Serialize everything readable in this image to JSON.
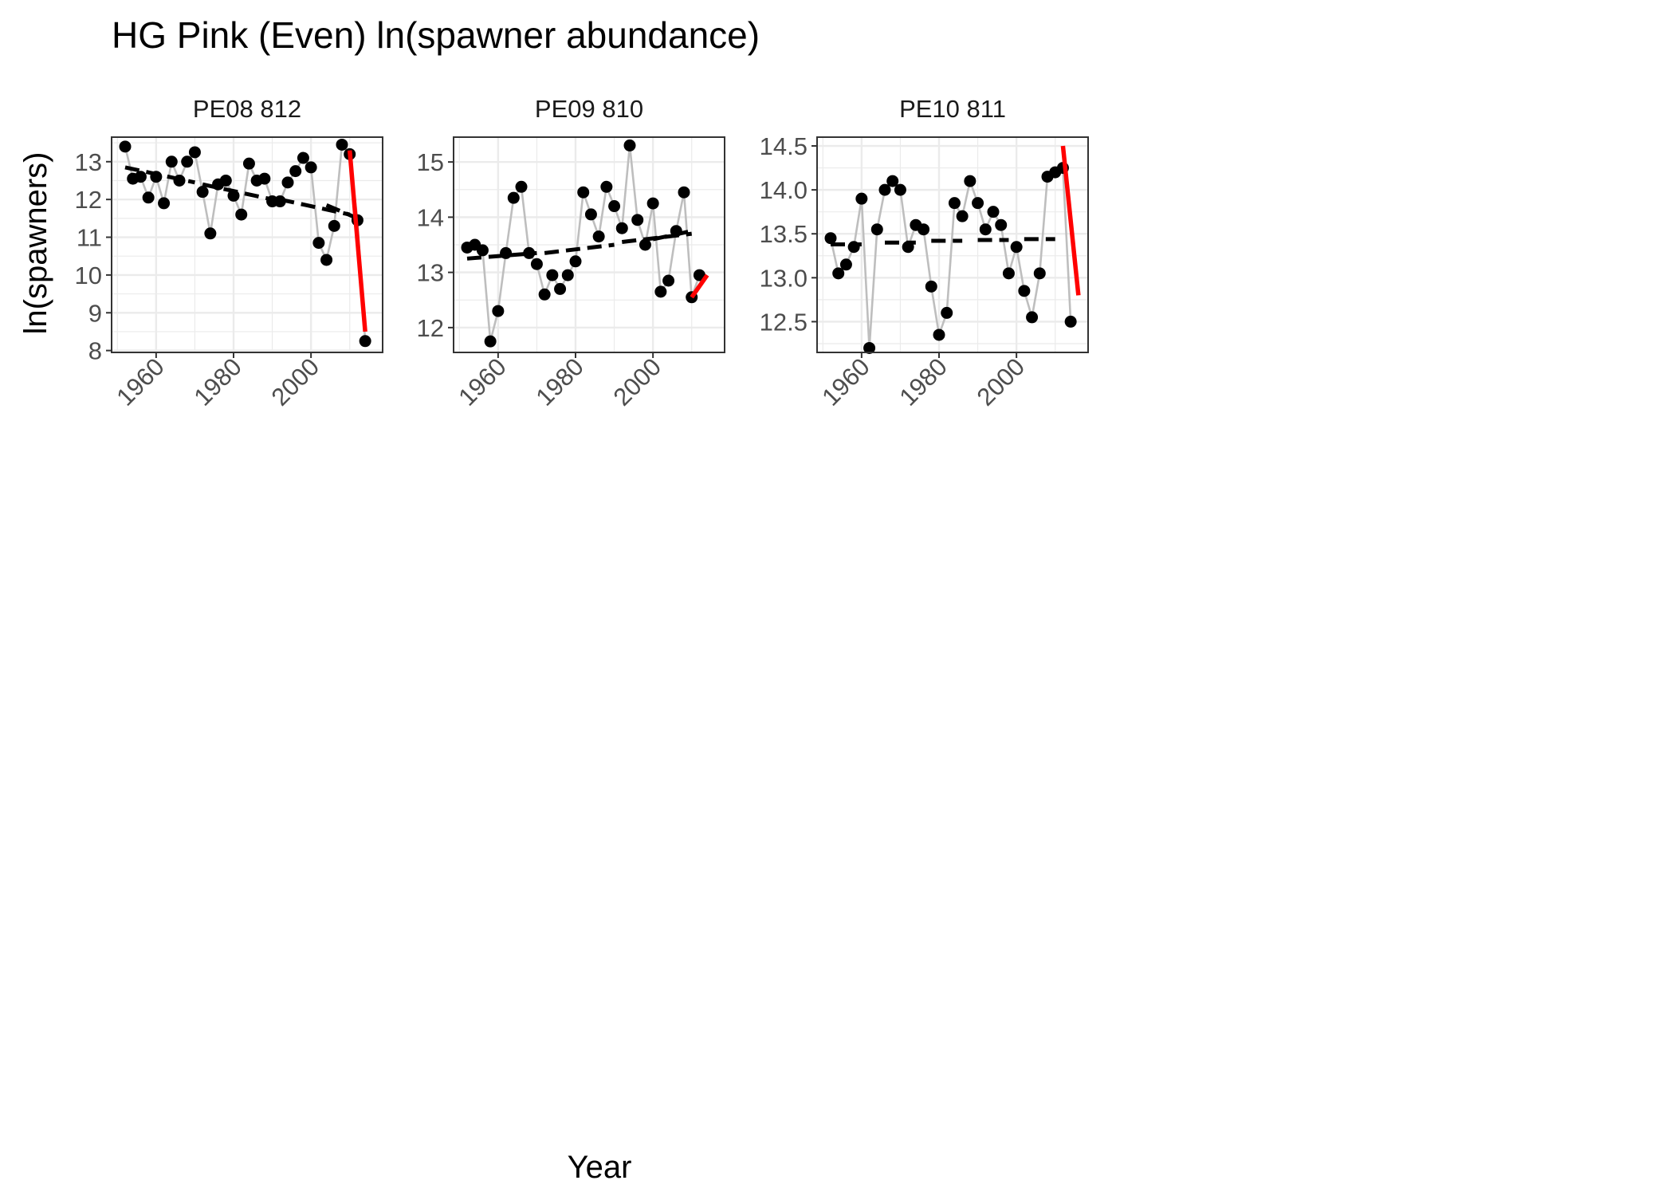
{
  "chart_data": {
    "type": "line",
    "title": "HG Pink (Even) ln(spawner abundance)",
    "xlabel": "Year",
    "ylabel": "ln(spawners)",
    "grid": true,
    "legend": "none",
    "colors": {
      "observed_line": "#bebebe",
      "points": "#000000",
      "trend_segments": "#000000",
      "recent_trend": "#ff0000",
      "grid": "#ebebeb",
      "panel_border": "#333333"
    },
    "panels": [
      {
        "name": "PE08 812",
        "xlim": [
          1948.5,
          2018.5
        ],
        "ylim": [
          7.95,
          13.65
        ],
        "xticks": [
          1960,
          1980,
          2000
        ],
        "yticks": [
          8,
          9,
          10,
          11,
          12,
          13
        ],
        "ytick_labels": [
          "8",
          "9",
          "10",
          "11",
          "12",
          "13"
        ],
        "x": [
          1952,
          1954,
          1956,
          1958,
          1960,
          1962,
          1964,
          1966,
          1968,
          1970,
          1972,
          1974,
          1976,
          1978,
          1980,
          1982,
          1984,
          1986,
          1988,
          1990,
          1992,
          1994,
          1996,
          1998,
          2000,
          2002,
          2004,
          2006,
          2008,
          2010,
          2012,
          2014,
          2016
        ],
        "y": [
          13.4,
          12.55,
          12.6,
          12.05,
          12.6,
          11.9,
          13.0,
          12.5,
          13.0,
          13.25,
          12.2,
          11.1,
          12.4,
          12.5,
          12.1,
          11.6,
          12.95,
          12.5,
          12.55,
          11.95,
          11.95,
          12.45,
          12.75,
          13.1,
          12.85,
          10.85,
          10.4,
          11.3,
          13.45,
          13.2,
          11.45,
          8.25,
          null
        ],
        "trend_segments": [
          {
            "x": [
              1952,
              1970
            ],
            "y": [
              12.85,
              12.45
            ]
          },
          {
            "x": [
              1972,
              1990
            ],
            "y": [
              12.4,
              12.0
            ]
          },
          {
            "x": [
              1992,
              2010
            ],
            "y": [
              12.0,
              11.6
            ]
          },
          {
            "x": [
              2004,
              2012
            ],
            "y": [
              11.85,
              11.5
            ]
          }
        ],
        "recent_trend": {
          "x": [
            2010,
            2014
          ],
          "y": [
            13.3,
            8.5
          ]
        }
      },
      {
        "name": "PE09 810",
        "xlim": [
          1948.5,
          2018.5
        ],
        "ylim": [
          11.55,
          15.45
        ],
        "xticks": [
          1960,
          1980,
          2000
        ],
        "yticks": [
          12,
          13,
          14,
          15
        ],
        "ytick_labels": [
          "12",
          "13",
          "14",
          "15"
        ],
        "x": [
          1952,
          1954,
          1956,
          1958,
          1960,
          1962,
          1964,
          1966,
          1968,
          1970,
          1972,
          1974,
          1976,
          1978,
          1980,
          1982,
          1984,
          1986,
          1988,
          1990,
          1992,
          1994,
          1996,
          1998,
          2000,
          2002,
          2004,
          2006,
          2008,
          2010,
          2012,
          2014
        ],
        "y": [
          13.45,
          13.5,
          13.4,
          11.75,
          12.3,
          13.35,
          14.35,
          14.55,
          13.35,
          13.15,
          12.6,
          12.95,
          12.7,
          12.95,
          13.2,
          14.45,
          14.05,
          13.65,
          14.55,
          14.2,
          13.8,
          15.3,
          13.95,
          13.5,
          14.25,
          12.65,
          12.85,
          13.75,
          14.45,
          12.55,
          12.95,
          null
        ],
        "trend_segments": [
          {
            "x": [
              1952,
              1970
            ],
            "y": [
              13.25,
              13.35
            ]
          },
          {
            "x": [
              1972,
              1990
            ],
            "y": [
              13.35,
              13.5
            ]
          },
          {
            "x": [
              1992,
              2010
            ],
            "y": [
              13.55,
              13.7
            ]
          },
          {
            "x": [
              2000,
              2010
            ],
            "y": [
              13.6,
              13.75
            ]
          }
        ],
        "recent_trend": {
          "x": [
            2010,
            2014
          ],
          "y": [
            12.55,
            12.95
          ]
        }
      },
      {
        "name": "PE10 811",
        "xlim": [
          1948.5,
          2018.5
        ],
        "ylim": [
          12.15,
          14.6
        ],
        "xticks": [
          1960,
          1980,
          2000
        ],
        "yticks": [
          12.5,
          13.0,
          13.5,
          14.0,
          14.5
        ],
        "ytick_labels": [
          "12.5",
          "13.0",
          "13.5",
          "14.0",
          "14.5"
        ],
        "x": [
          1952,
          1954,
          1956,
          1958,
          1960,
          1962,
          1964,
          1966,
          1968,
          1970,
          1972,
          1974,
          1976,
          1978,
          1980,
          1982,
          1984,
          1986,
          1988,
          1990,
          1992,
          1994,
          1996,
          1998,
          2000,
          2002,
          2004,
          2006,
          2008,
          2010,
          2012,
          2014,
          2016
        ],
        "y": [
          13.45,
          13.05,
          13.15,
          13.35,
          13.9,
          12.2,
          13.55,
          14.0,
          14.1,
          14.0,
          13.35,
          13.6,
          13.55,
          12.9,
          12.35,
          12.6,
          13.85,
          13.7,
          14.1,
          13.85,
          13.55,
          13.75,
          13.6,
          13.05,
          13.35,
          12.85,
          12.55,
          13.05,
          14.15,
          14.2,
          14.25,
          12.5,
          null
        ],
        "trend_segments": [
          {
            "x": [
              1952,
              1960
            ],
            "y": [
              13.38,
              13.38
            ]
          },
          {
            "x": [
              1966,
              1974
            ],
            "y": [
              13.4,
              13.4
            ]
          },
          {
            "x": [
              1978,
              1986
            ],
            "y": [
              13.42,
              13.42
            ]
          },
          {
            "x": [
              1990,
              1998
            ],
            "y": [
              13.43,
              13.43
            ]
          },
          {
            "x": [
              2002,
              2010
            ],
            "y": [
              13.44,
              13.44
            ]
          }
        ],
        "recent_trend": {
          "x": [
            2012,
            2016
          ],
          "y": [
            14.5,
            12.8
          ]
        }
      }
    ]
  }
}
